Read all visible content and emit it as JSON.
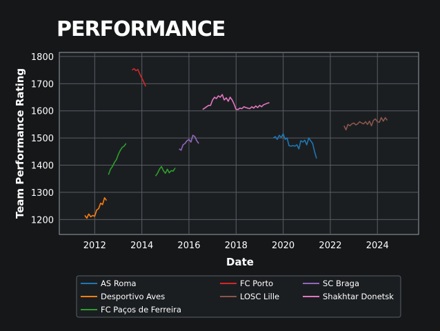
{
  "colors": {
    "background": "#151719",
    "plot_background": "#1b1e21",
    "grid": "#5a5f66",
    "axis": "#9aa0a6"
  },
  "chart_data": {
    "type": "line",
    "title": "PERFORMANCE",
    "xlabel": "Date",
    "ylabel": "Team Performance Rating",
    "xlim": [
      "2010-07-01",
      "2025-10-01"
    ],
    "ylim": [
      1145,
      1815
    ],
    "x_ticks": [
      "2012",
      "2014",
      "2016",
      "2018",
      "2020",
      "2022",
      "2024"
    ],
    "y_ticks": [
      1200,
      1300,
      1400,
      1500,
      1600,
      1700,
      1800
    ],
    "grid": true,
    "legend_position": "bottom",
    "series": [
      {
        "name": "AS Roma",
        "color": "#1f77b4",
        "points": [
          [
            "2019-08-01",
            1500
          ],
          [
            "2019-09-01",
            1505
          ],
          [
            "2019-10-01",
            1495
          ],
          [
            "2019-11-01",
            1510
          ],
          [
            "2019-12-01",
            1502
          ],
          [
            "2020-01-01",
            1515
          ],
          [
            "2020-02-01",
            1495
          ],
          [
            "2020-03-01",
            1500
          ],
          [
            "2020-04-01",
            1472
          ],
          [
            "2020-05-01",
            1470
          ],
          [
            "2020-06-01",
            1472
          ],
          [
            "2020-07-01",
            1470
          ],
          [
            "2020-08-01",
            1475
          ],
          [
            "2020-09-01",
            1460
          ],
          [
            "2020-10-01",
            1490
          ],
          [
            "2020-11-01",
            1485
          ],
          [
            "2020-12-01",
            1492
          ],
          [
            "2021-01-01",
            1475
          ],
          [
            "2021-02-01",
            1500
          ],
          [
            "2021-03-01",
            1490
          ],
          [
            "2021-04-01",
            1480
          ],
          [
            "2021-05-01",
            1450
          ],
          [
            "2021-06-01",
            1425
          ]
        ]
      },
      {
        "name": "Desportivo Aves",
        "color": "#ff7f0e",
        "points": [
          [
            "2011-08-01",
            1215
          ],
          [
            "2011-09-01",
            1205
          ],
          [
            "2011-10-01",
            1220
          ],
          [
            "2011-11-01",
            1210
          ],
          [
            "2011-12-01",
            1215
          ],
          [
            "2012-01-01",
            1212
          ],
          [
            "2012-02-01",
            1235
          ],
          [
            "2012-03-01",
            1240
          ],
          [
            "2012-04-01",
            1260
          ],
          [
            "2012-05-01",
            1255
          ],
          [
            "2012-06-01",
            1280
          ],
          [
            "2012-07-01",
            1270
          ]
        ]
      },
      {
        "name": "FC Paços de Ferreira",
        "color": "#2ca02c",
        "segments": [
          [
            [
              "2012-08-01",
              1365
            ],
            [
              "2012-09-01",
              1385
            ],
            [
              "2012-10-01",
              1395
            ],
            [
              "2012-11-01",
              1410
            ],
            [
              "2012-12-01",
              1420
            ],
            [
              "2013-01-01",
              1440
            ],
            [
              "2013-02-01",
              1455
            ],
            [
              "2013-03-01",
              1465
            ],
            [
              "2013-04-01",
              1470
            ],
            [
              "2013-05-01",
              1480
            ]
          ],
          [
            [
              "2014-08-01",
              1360
            ],
            [
              "2014-09-01",
              1370
            ],
            [
              "2014-10-01",
              1385
            ],
            [
              "2014-11-01",
              1395
            ],
            [
              "2014-12-01",
              1380
            ],
            [
              "2015-01-01",
              1370
            ],
            [
              "2015-02-01",
              1385
            ],
            [
              "2015-03-01",
              1372
            ],
            [
              "2015-04-01",
              1380
            ],
            [
              "2015-05-01",
              1378
            ],
            [
              "2015-06-01",
              1390
            ]
          ]
        ]
      },
      {
        "name": "FC Porto",
        "color": "#d62728",
        "points": [
          [
            "2013-08-01",
            1750
          ],
          [
            "2013-09-01",
            1755
          ],
          [
            "2013-10-01",
            1748
          ],
          [
            "2013-11-01",
            1752
          ],
          [
            "2013-12-01",
            1735
          ],
          [
            "2014-01-01",
            1720
          ],
          [
            "2014-02-01",
            1705
          ],
          [
            "2014-03-01",
            1690
          ]
        ]
      },
      {
        "name": "LOSC Lille",
        "color": "#8c564b",
        "points": [
          [
            "2022-08-01",
            1545
          ],
          [
            "2022-09-01",
            1530
          ],
          [
            "2022-10-01",
            1550
          ],
          [
            "2022-11-01",
            1545
          ],
          [
            "2022-12-01",
            1552
          ],
          [
            "2023-01-01",
            1555
          ],
          [
            "2023-02-01",
            1548
          ],
          [
            "2023-03-01",
            1552
          ],
          [
            "2023-04-01",
            1560
          ],
          [
            "2023-05-01",
            1555
          ],
          [
            "2023-06-01",
            1552
          ],
          [
            "2023-07-01",
            1560
          ],
          [
            "2023-08-01",
            1550
          ],
          [
            "2023-09-01",
            1562
          ],
          [
            "2023-10-01",
            1545
          ],
          [
            "2023-11-01",
            1565
          ],
          [
            "2023-12-01",
            1570
          ],
          [
            "2024-01-01",
            1560
          ],
          [
            "2024-02-01",
            1558
          ],
          [
            "2024-03-01",
            1575
          ],
          [
            "2024-04-01",
            1562
          ],
          [
            "2024-05-01",
            1575
          ],
          [
            "2024-06-01",
            1565
          ]
        ]
      },
      {
        "name": "SC Braga",
        "color": "#9467bd",
        "points": [
          [
            "2015-08-01",
            1460
          ],
          [
            "2015-09-01",
            1455
          ],
          [
            "2015-10-01",
            1475
          ],
          [
            "2015-11-01",
            1480
          ],
          [
            "2015-12-01",
            1490
          ],
          [
            "2016-01-01",
            1495
          ],
          [
            "2016-02-01",
            1485
          ],
          [
            "2016-03-01",
            1510
          ],
          [
            "2016-04-01",
            1505
          ],
          [
            "2016-05-01",
            1490
          ],
          [
            "2016-06-01",
            1480
          ]
        ]
      },
      {
        "name": "Shakhtar Donetsk",
        "color": "#e377c2",
        "points": [
          [
            "2016-08-01",
            1605
          ],
          [
            "2016-09-01",
            1610
          ],
          [
            "2016-10-01",
            1615
          ],
          [
            "2016-11-01",
            1620
          ],
          [
            "2016-12-01",
            1620
          ],
          [
            "2017-01-01",
            1640
          ],
          [
            "2017-02-01",
            1650
          ],
          [
            "2017-03-01",
            1645
          ],
          [
            "2017-04-01",
            1655
          ],
          [
            "2017-05-01",
            1650
          ],
          [
            "2017-06-01",
            1660
          ],
          [
            "2017-07-01",
            1640
          ],
          [
            "2017-08-01",
            1648
          ],
          [
            "2017-09-01",
            1635
          ],
          [
            "2017-10-01",
            1650
          ],
          [
            "2017-11-01",
            1640
          ],
          [
            "2017-12-01",
            1625
          ],
          [
            "2018-01-01",
            1605
          ],
          [
            "2018-02-01",
            1605
          ],
          [
            "2018-03-01",
            1610
          ],
          [
            "2018-04-01",
            1608
          ],
          [
            "2018-05-01",
            1615
          ],
          [
            "2018-06-01",
            1612
          ],
          [
            "2018-07-01",
            1610
          ],
          [
            "2018-08-01",
            1608
          ],
          [
            "2018-09-01",
            1615
          ],
          [
            "2018-10-01",
            1610
          ],
          [
            "2018-11-01",
            1618
          ],
          [
            "2018-12-01",
            1612
          ],
          [
            "2019-01-01",
            1620
          ],
          [
            "2019-02-01",
            1615
          ],
          [
            "2019-03-01",
            1622
          ],
          [
            "2019-04-01",
            1625
          ],
          [
            "2019-05-01",
            1628
          ],
          [
            "2019-06-01",
            1630
          ]
        ]
      }
    ],
    "legend": [
      [
        "AS Roma",
        "FC Porto",
        "SC Braga"
      ],
      [
        "Desportivo Aves",
        "LOSC Lille",
        "Shakhtar Donetsk"
      ],
      [
        "FC Paços de Ferreira"
      ]
    ]
  }
}
